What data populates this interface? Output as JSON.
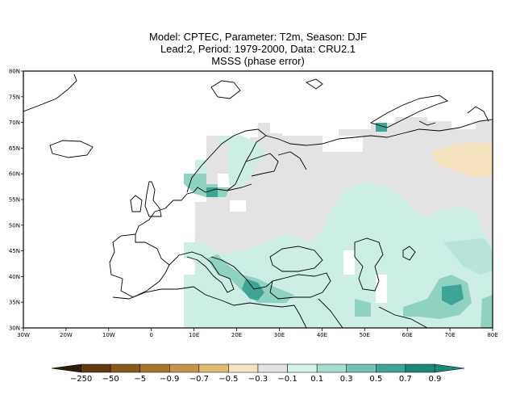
{
  "title": {
    "line1": "Model: CPTEC, Parameter: T2m, Season: DJF",
    "line2": "Lead:2, Period: 1979-2000, Data: CRU2.1",
    "line3": "MSSS (phase error)"
  },
  "map": {
    "lon_range": [
      -30,
      80
    ],
    "lat_range": [
      30,
      80
    ],
    "x_ticks": [
      "30W",
      "20W",
      "10W",
      "0",
      "10E",
      "20E",
      "30E",
      "40E",
      "50E",
      "60E",
      "70E",
      "80E"
    ],
    "y_ticks": [
      "30N",
      "35N",
      "40N",
      "45N",
      "50N",
      "55N",
      "60N",
      "65N",
      "70N",
      "75N",
      "80N"
    ]
  },
  "colorbar": {
    "labels": [
      "-250",
      "-50",
      "-5",
      "-0.9",
      "-0.7",
      "-0.5",
      "-0.3",
      "-0.1",
      "0.1",
      "0.3",
      "0.5",
      "0.7",
      "0.9"
    ],
    "colors": [
      "#2b1d07",
      "#5e3a0f",
      "#8a5818",
      "#a8752b",
      "#c4964a",
      "#dcbb74",
      "#f4e3bd",
      "#e3e3e3",
      "#d6f1e9",
      "#a7dccf",
      "#72c4b4",
      "#3ea596",
      "#1a8777",
      "#19897a"
    ]
  },
  "colors": {
    "gray": "#e3e3e3",
    "light_teal": "#cdeee5",
    "mid_teal": "#8fd2c2",
    "dark_teal": "#3ea596",
    "beige": "#f4e3bd"
  }
}
